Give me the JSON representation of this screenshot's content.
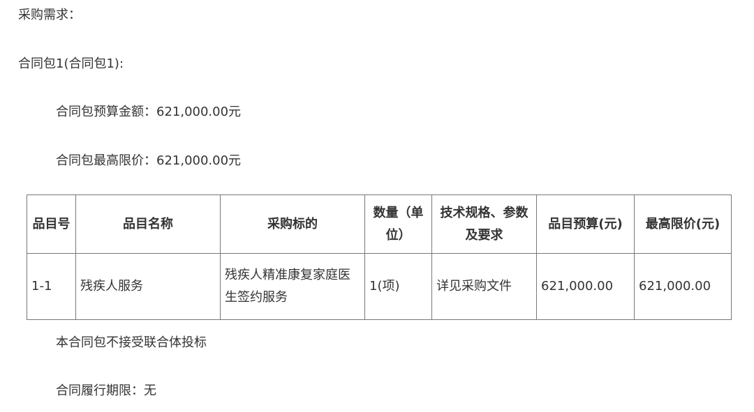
{
  "heading": "采购需求：",
  "package_title": "合同包1(合同包1):",
  "budget_line": "合同包预算金额：621,000.00元",
  "max_price_line": "合同包最高限价：621,000.00元",
  "table": {
    "headers": [
      "品目号",
      "品目名称",
      "采购标的",
      "数量（单位）",
      "技术规格、参数及要求",
      "品目预算(元)",
      "最高限价(元)"
    ],
    "rows": [
      [
        "1-1",
        "残疾人服务",
        "残疾人精准康复家庭医生签约服务",
        "1(项)",
        "详见采购文件",
        "621,000.00",
        "621,000.00"
      ]
    ]
  },
  "consortium_note": "本合同包不接受联合体投标",
  "term_line": "合同履行期限：无"
}
